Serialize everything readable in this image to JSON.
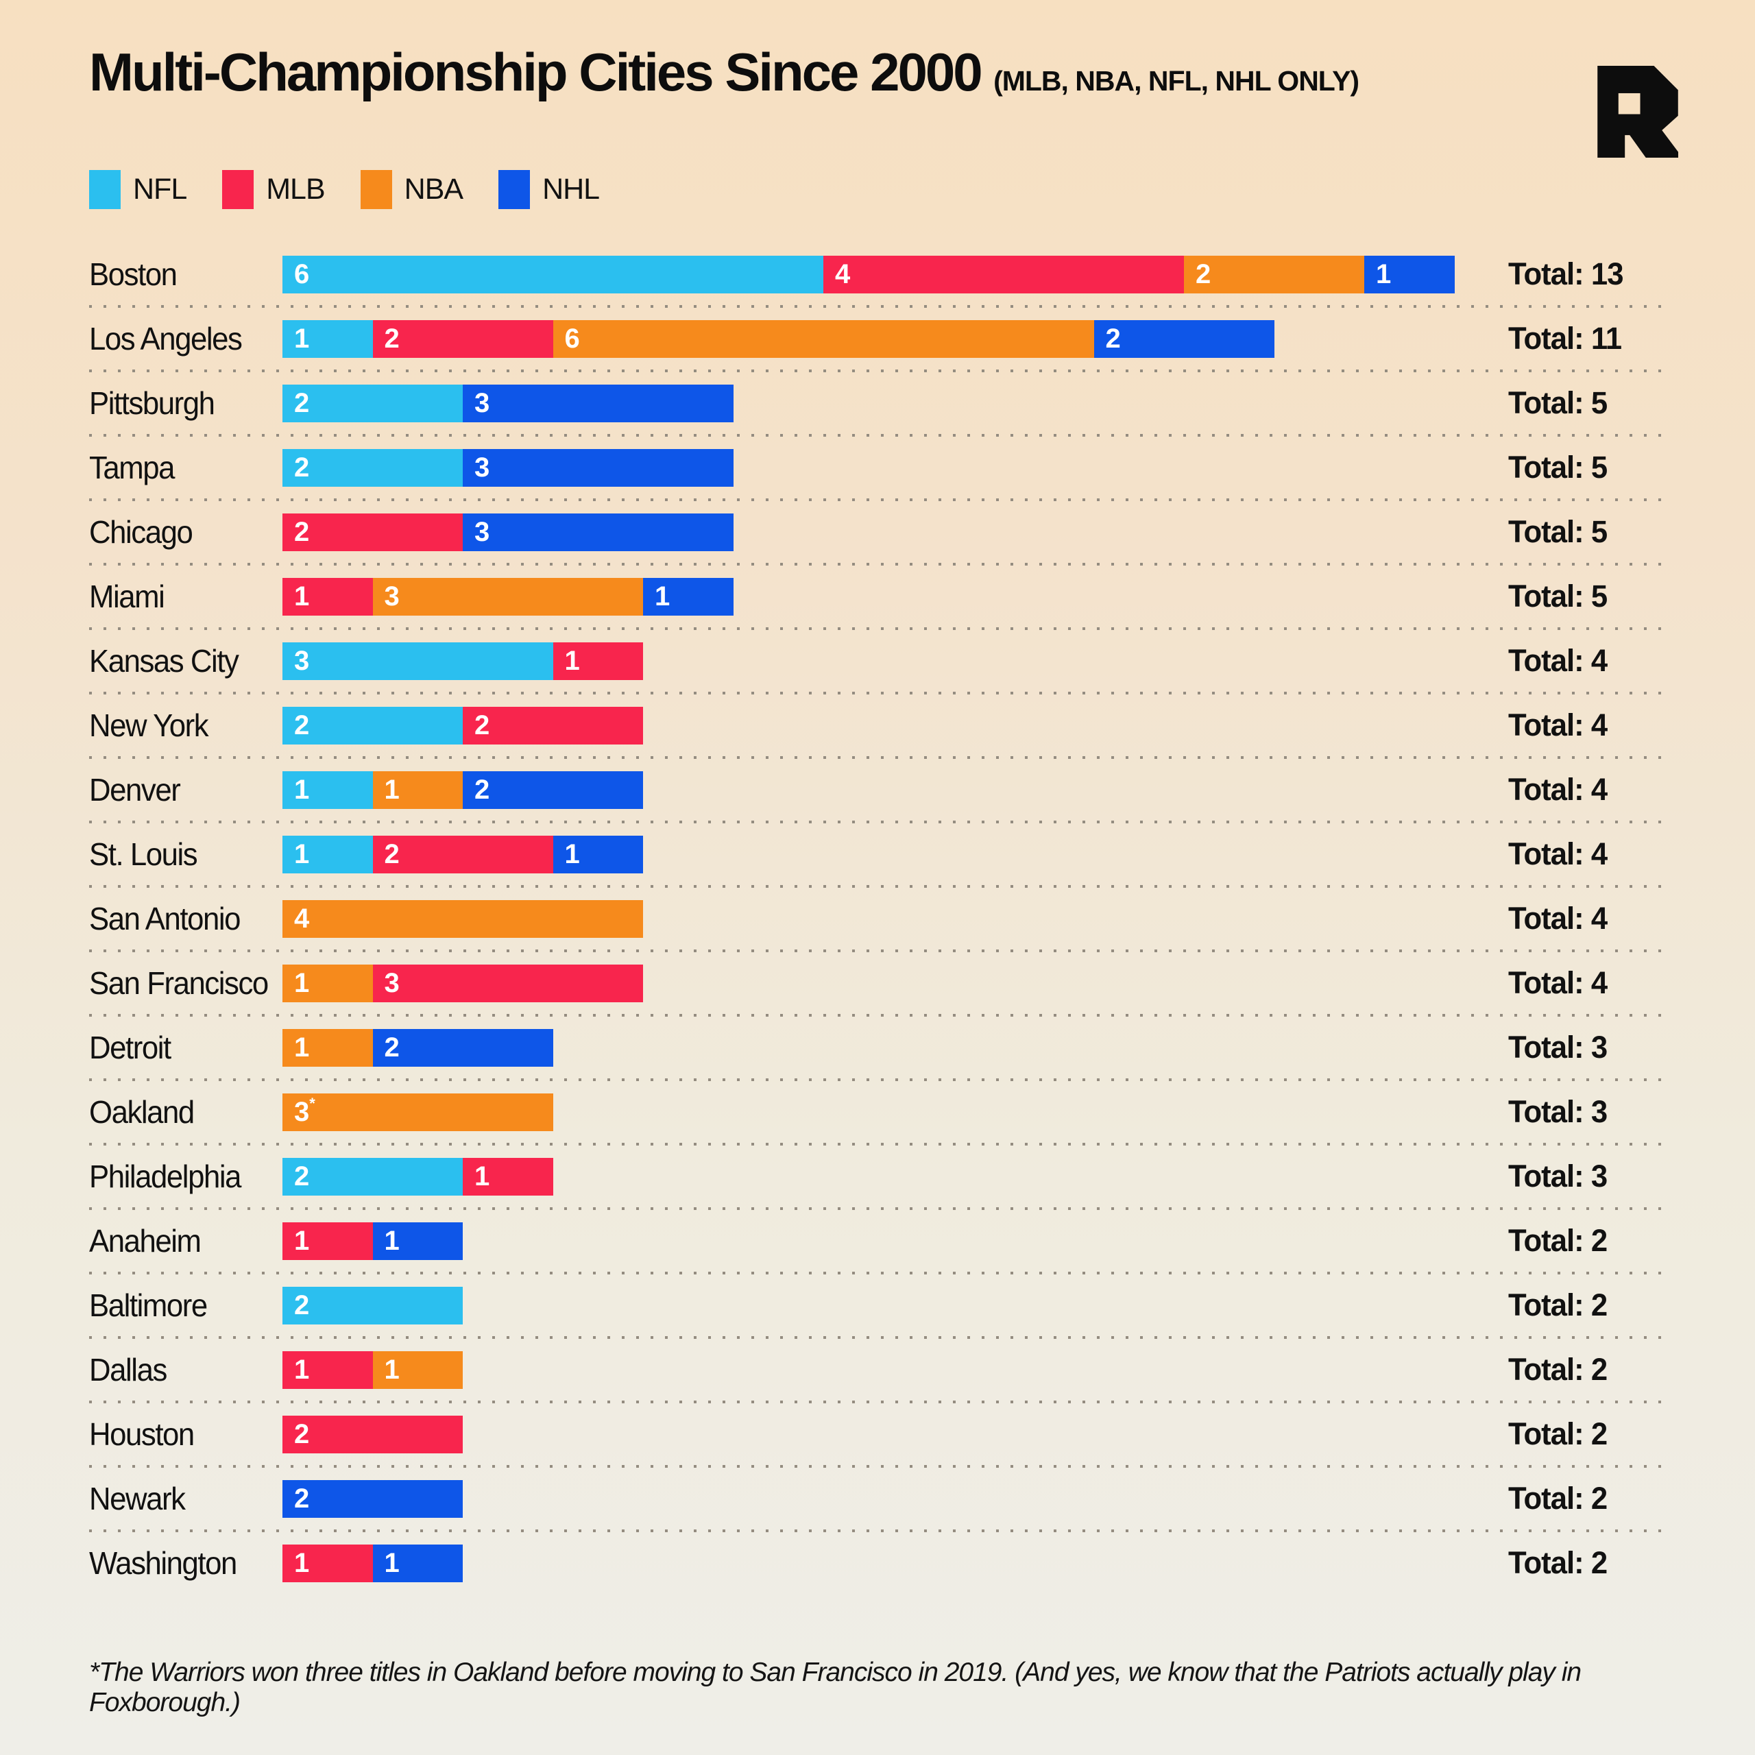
{
  "header": {
    "title": "Multi-Championship Cities Since 2000",
    "subtitle": "(MLB, NBA, NFL, NHL ONLY)"
  },
  "logo": {
    "name": "ringer-r-logo",
    "color": "#0d0d0d"
  },
  "legend": {
    "items": [
      {
        "label": "NFL",
        "color": "#2BBFEF"
      },
      {
        "label": "MLB",
        "color": "#F8254D"
      },
      {
        "label": "NBA",
        "color": "#F68A1C"
      },
      {
        "label": "NHL",
        "color": "#0E56E8"
      }
    ]
  },
  "chart_data": {
    "type": "bar",
    "subtype": "horizontal_stacked",
    "unit": "championships won since 2000",
    "leagues": [
      "NFL",
      "MLB",
      "NBA",
      "NHL"
    ],
    "rows": [
      {
        "city": "Boston",
        "segments": [
          {
            "league": "NFL",
            "value": 6
          },
          {
            "league": "MLB",
            "value": 4
          },
          {
            "league": "NBA",
            "value": 2
          },
          {
            "league": "NHL",
            "value": 1
          }
        ],
        "total": 13,
        "total_label": "Total: 13"
      },
      {
        "city": "Los Angeles",
        "segments": [
          {
            "league": "NFL",
            "value": 1
          },
          {
            "league": "MLB",
            "value": 2
          },
          {
            "league": "NBA",
            "value": 6
          },
          {
            "league": "NHL",
            "value": 2
          }
        ],
        "total": 11,
        "total_label": "Total: 11"
      },
      {
        "city": "Pittsburgh",
        "segments": [
          {
            "league": "NFL",
            "value": 2
          },
          {
            "league": "NHL",
            "value": 3
          }
        ],
        "total": 5,
        "total_label": "Total: 5"
      },
      {
        "city": "Tampa",
        "segments": [
          {
            "league": "NFL",
            "value": 2
          },
          {
            "league": "NHL",
            "value": 3
          }
        ],
        "total": 5,
        "total_label": "Total: 5"
      },
      {
        "city": "Chicago",
        "segments": [
          {
            "league": "MLB",
            "value": 2
          },
          {
            "league": "NHL",
            "value": 3
          }
        ],
        "total": 5,
        "total_label": "Total: 5"
      },
      {
        "city": "Miami",
        "segments": [
          {
            "league": "MLB",
            "value": 1
          },
          {
            "league": "NBA",
            "value": 3
          },
          {
            "league": "NHL",
            "value": 1
          }
        ],
        "total": 5,
        "total_label": "Total: 5"
      },
      {
        "city": "Kansas City",
        "segments": [
          {
            "league": "NFL",
            "value": 3
          },
          {
            "league": "MLB",
            "value": 1
          }
        ],
        "total": 4,
        "total_label": "Total: 4"
      },
      {
        "city": "New York",
        "segments": [
          {
            "league": "NFL",
            "value": 2
          },
          {
            "league": "MLB",
            "value": 2
          }
        ],
        "total": 4,
        "total_label": "Total: 4"
      },
      {
        "city": "Denver",
        "segments": [
          {
            "league": "NFL",
            "value": 1
          },
          {
            "league": "NBA",
            "value": 1
          },
          {
            "league": "NHL",
            "value": 2
          }
        ],
        "total": 4,
        "total_label": "Total: 4"
      },
      {
        "city": "St. Louis",
        "segments": [
          {
            "league": "NFL",
            "value": 1
          },
          {
            "league": "MLB",
            "value": 2
          },
          {
            "league": "NHL",
            "value": 1
          }
        ],
        "total": 4,
        "total_label": "Total: 4"
      },
      {
        "city": "San Antonio",
        "segments": [
          {
            "league": "NBA",
            "value": 4
          }
        ],
        "total": 4,
        "total_label": "Total: 4"
      },
      {
        "city": "San Francisco",
        "segments": [
          {
            "league": "NBA",
            "value": 1
          },
          {
            "league": "MLB",
            "value": 3
          }
        ],
        "total": 4,
        "total_label": "Total: 4"
      },
      {
        "city": "Detroit",
        "segments": [
          {
            "league": "NBA",
            "value": 1
          },
          {
            "league": "NHL",
            "value": 2
          }
        ],
        "total": 3,
        "total_label": "Total: 3"
      },
      {
        "city": "Oakland",
        "segments": [
          {
            "league": "NBA",
            "value": 3,
            "note_marker": "*"
          }
        ],
        "total": 3,
        "total_label": "Total: 3"
      },
      {
        "city": "Philadelphia",
        "segments": [
          {
            "league": "NFL",
            "value": 2
          },
          {
            "league": "MLB",
            "value": 1
          }
        ],
        "total": 3,
        "total_label": "Total: 3"
      },
      {
        "city": "Anaheim",
        "segments": [
          {
            "league": "MLB",
            "value": 1
          },
          {
            "league": "NHL",
            "value": 1
          }
        ],
        "total": 2,
        "total_label": "Total: 2"
      },
      {
        "city": "Baltimore",
        "segments": [
          {
            "league": "NFL",
            "value": 2
          }
        ],
        "total": 2,
        "total_label": "Total: 2"
      },
      {
        "city": "Dallas",
        "segments": [
          {
            "league": "MLB",
            "value": 1
          },
          {
            "league": "NBA",
            "value": 1
          }
        ],
        "total": 2,
        "total_label": "Total: 2"
      },
      {
        "city": "Houston",
        "segments": [
          {
            "league": "MLB",
            "value": 2
          }
        ],
        "total": 2,
        "total_label": "Total: 2"
      },
      {
        "city": "Newark",
        "segments": [
          {
            "league": "NHL",
            "value": 2
          }
        ],
        "total": 2,
        "total_label": "Total: 2"
      },
      {
        "city": "Washington",
        "segments": [
          {
            "league": "MLB",
            "value": 1
          },
          {
            "league": "NHL",
            "value": 1
          }
        ],
        "total": 2,
        "total_label": "Total: 2"
      }
    ]
  },
  "footnote": {
    "text": "*The Warriors won three titles in Oakland before moving to San Francisco in 2019. (And yes, we know that the Patriots actually play in Foxborough.)"
  }
}
